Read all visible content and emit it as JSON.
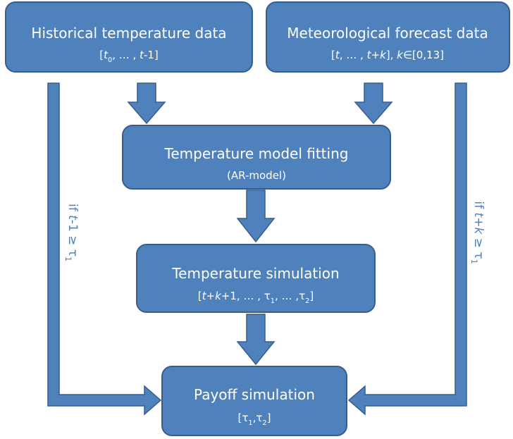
{
  "nodes": [
    {
      "title": "Historical temperature data",
      "detail": [
        {
          "text": "[",
          "style": "normal"
        },
        {
          "text": "t",
          "style": "italic"
        },
        {
          "text": "0",
          "style": "sub"
        },
        {
          "text": ", … , ",
          "style": "normal"
        },
        {
          "text": "t",
          "style": "italic"
        },
        {
          "text": "-1]",
          "style": "normal"
        }
      ]
    },
    {
      "title": "Meteorological forecast data",
      "detail": [
        {
          "text": "[",
          "style": "normal"
        },
        {
          "text": "t",
          "style": "italic"
        },
        {
          "text": ", … , ",
          "style": "normal"
        },
        {
          "text": "t",
          "style": "italic"
        },
        {
          "text": "+",
          "style": "normal"
        },
        {
          "text": "k",
          "style": "italic"
        },
        {
          "text": "], ",
          "style": "normal"
        },
        {
          "text": "k",
          "style": "italic"
        },
        {
          "text": "∈[0,13]",
          "style": "normal"
        }
      ]
    },
    {
      "title": "Temperature model fitting",
      "detail": [
        {
          "text": "(AR-model)",
          "style": "normal"
        }
      ]
    },
    {
      "title": "Temperature simulation",
      "detail": [
        {
          "text": "[",
          "style": "normal"
        },
        {
          "text": "t",
          "style": "italic"
        },
        {
          "text": "+",
          "style": "normal"
        },
        {
          "text": "k",
          "style": "italic"
        },
        {
          "text": "+1, … , τ",
          "style": "normal"
        },
        {
          "text": "1",
          "style": "sub"
        },
        {
          "text": ", … ,τ",
          "style": "normal"
        },
        {
          "text": "2",
          "style": "sub"
        },
        {
          "text": "]",
          "style": "normal"
        }
      ]
    },
    {
      "title": "Payoff simulation",
      "detail": [
        {
          "text": "[τ",
          "style": "normal"
        },
        {
          "text": "1",
          "style": "sub"
        },
        {
          "text": ",τ",
          "style": "normal"
        },
        {
          "text": "2",
          "style": "sub"
        },
        {
          "text": "]",
          "style": "normal"
        }
      ]
    }
  ],
  "conditions": [
    {
      "label": [
        {
          "text": "if ",
          "style": "normal"
        },
        {
          "text": "t",
          "style": "italic"
        },
        {
          "text": "-1 ≥ τ",
          "style": "normal"
        },
        {
          "text": "1",
          "style": "sub"
        }
      ]
    },
    {
      "label": [
        {
          "text": "if ",
          "style": "normal"
        },
        {
          "text": "t",
          "style": "italic"
        },
        {
          "text": "+",
          "style": "normal"
        },
        {
          "text": "k",
          "style": "italic"
        },
        {
          "text": " ≥ τ",
          "style": "normal"
        },
        {
          "text": "1",
          "style": "sub"
        }
      ]
    }
  ]
}
